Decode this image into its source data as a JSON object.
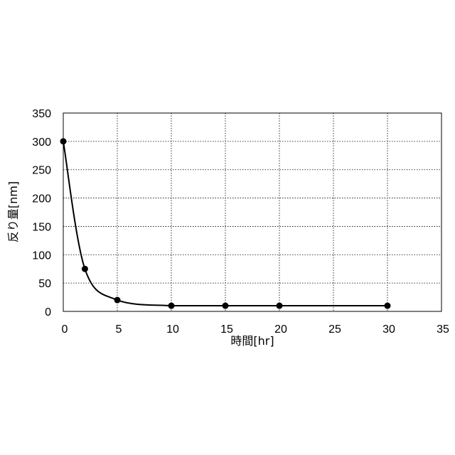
{
  "chart_data": {
    "type": "scatter",
    "title": "",
    "xlabel": "時間[hr]",
    "ylabel": "反り量[nm]",
    "xlim": [
      0,
      35
    ],
    "ylim": [
      0,
      350
    ],
    "xticks": [
      "0",
      "5",
      "10",
      "15",
      "20",
      "25",
      "30",
      "35"
    ],
    "yticks": [
      "0",
      "50",
      "100",
      "150",
      "200",
      "250",
      "300",
      "350"
    ],
    "grid": true,
    "grid_style": "dotted",
    "legend": "none",
    "series": [
      {
        "x": [
          0,
          2,
          5,
          10,
          15,
          20,
          30
        ],
        "y": [
          300,
          75,
          20,
          10,
          10,
          10,
          10
        ],
        "marker": "circle",
        "line": "smooth",
        "color": "#000000"
      }
    ]
  }
}
